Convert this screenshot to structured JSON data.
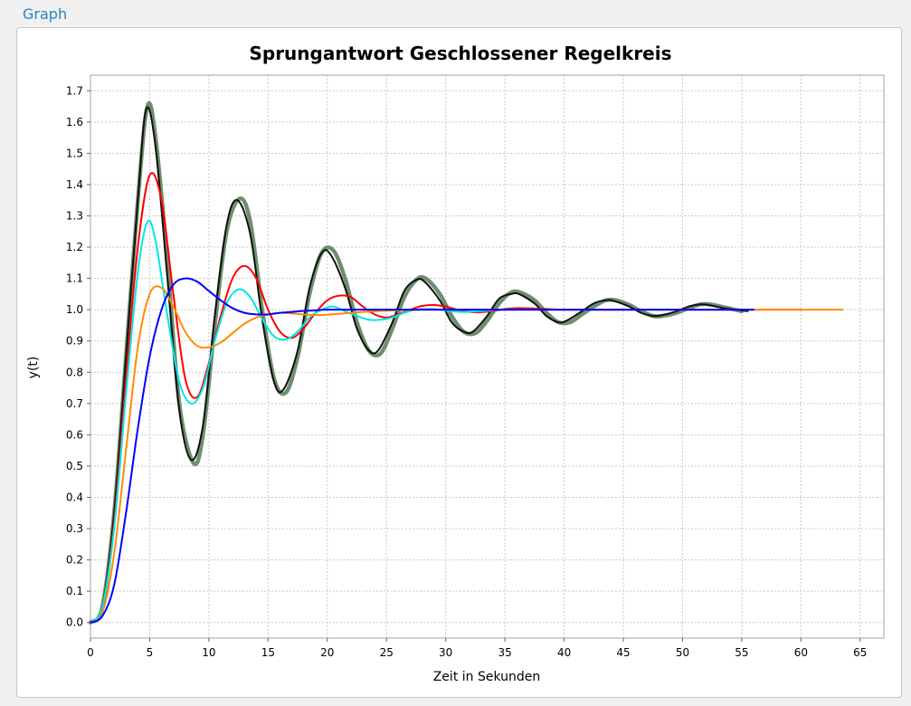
{
  "panel": {
    "title": "Graph"
  },
  "chart_data": {
    "type": "line",
    "title": "Sprungantwort Geschlossener Regelkreis",
    "xlabel": "Zeit in Sekunden",
    "ylabel": "y(t)",
    "xlim": [
      0,
      67
    ],
    "ylim": [
      -0.05,
      1.75
    ],
    "xticks": [
      0,
      5,
      10,
      15,
      20,
      25,
      30,
      35,
      40,
      45,
      50,
      55,
      60,
      65
    ],
    "yticks": [
      0.0,
      0.1,
      0.2,
      0.3,
      0.4,
      0.5,
      0.6,
      0.7,
      0.8,
      0.9,
      1.0,
      1.1,
      1.2,
      1.3,
      1.4,
      1.5,
      1.6,
      1.7
    ],
    "grid": true,
    "series": [
      {
        "color": "#6e8f6e",
        "width": 4.5,
        "x": [
          0,
          1,
          2,
          3,
          4,
          4.8,
          5.5,
          6.5,
          7.5,
          8.7,
          9.5,
          10.5,
          11.5,
          12.6,
          13.5,
          14.5,
          15.5,
          16.5,
          17.5,
          18.5,
          19.5,
          20.5,
          21.5,
          22.5,
          23.5,
          24.5,
          25.5,
          26.5,
          27.5,
          28.3,
          29.5,
          30.5,
          31.5,
          32.5,
          33.5,
          34.5,
          35.5,
          36.3,
          37.5,
          38.5,
          39.5,
          40.5,
          41.5,
          42.5,
          43.5,
          44.4,
          45.5,
          46.5,
          47.5,
          48.3,
          49.5,
          50.5,
          51.5,
          52.3,
          53.5,
          55
        ],
        "y": [
          0,
          0.05,
          0.35,
          0.85,
          1.35,
          1.65,
          1.55,
          1.15,
          0.7,
          0.51,
          0.6,
          0.95,
          1.25,
          1.355,
          1.28,
          1.0,
          0.78,
          0.735,
          0.85,
          1.05,
          1.18,
          1.19,
          1.1,
          0.96,
          0.87,
          0.86,
          0.94,
          1.04,
          1.095,
          1.1,
          1.05,
          0.98,
          0.93,
          0.925,
          0.965,
          1.02,
          1.055,
          1.055,
          1.03,
          0.99,
          0.96,
          0.96,
          0.985,
          1.01,
          1.03,
          1.03,
          1.015,
          0.995,
          0.98,
          0.98,
          0.99,
          1.005,
          1.017,
          1.017,
          1.008,
          0.995
        ]
      },
      {
        "color": "#111111",
        "width": 2,
        "x": [
          0,
          1,
          2,
          3,
          4,
          4.7,
          5.5,
          6.5,
          7.5,
          8.5,
          9.5,
          10.5,
          11.5,
          12.4,
          13.5,
          14.5,
          15.5,
          16.3,
          17.5,
          18.5,
          19.5,
          20.3,
          21.5,
          22.5,
          23.5,
          24.3,
          25.5,
          26.5,
          27.5,
          28.2,
          29.5,
          30.5,
          31.5,
          32.3,
          33.5,
          34.5,
          35.5,
          36.2,
          37.5,
          38.5,
          39.5,
          40.2,
          41.5,
          42.5,
          43.5,
          44.2,
          45.5,
          46.5,
          47.5,
          48.2,
          49.5,
          50.5,
          51.5,
          52.2,
          53.5,
          55.5
        ],
        "y": [
          0,
          0.05,
          0.35,
          0.85,
          1.35,
          1.64,
          1.52,
          1.1,
          0.68,
          0.52,
          0.63,
          0.98,
          1.27,
          1.35,
          1.24,
          0.97,
          0.77,
          0.745,
          0.87,
          1.07,
          1.18,
          1.175,
          1.07,
          0.94,
          0.87,
          0.87,
          0.96,
          1.06,
          1.095,
          1.09,
          1.03,
          0.96,
          0.93,
          0.93,
          0.98,
          1.035,
          1.05,
          1.05,
          1.02,
          0.98,
          0.96,
          0.965,
          0.995,
          1.02,
          1.03,
          1.028,
          1.01,
          0.99,
          0.98,
          0.982,
          0.995,
          1.01,
          1.017,
          1.015,
          1.005,
          0.995
        ]
      },
      {
        "color": "#ff0000",
        "width": 2,
        "x": [
          0,
          1,
          2,
          3,
          4,
          5,
          6,
          7,
          8,
          9,
          10,
          11,
          12,
          13,
          14,
          15,
          16,
          17,
          18,
          19,
          20,
          21,
          22,
          23,
          24,
          25,
          26,
          27,
          28,
          29,
          30,
          31,
          32,
          33,
          34,
          35,
          36,
          38,
          40,
          45,
          50,
          55,
          60
        ],
        "y": [
          0,
          0.05,
          0.32,
          0.78,
          1.2,
          1.43,
          1.35,
          1.05,
          0.78,
          0.72,
          0.83,
          0.98,
          1.1,
          1.14,
          1.1,
          1.0,
          0.93,
          0.91,
          0.94,
          0.99,
          1.03,
          1.045,
          1.04,
          1.01,
          0.985,
          0.975,
          0.985,
          1.0,
          1.012,
          1.015,
          1.01,
          1.0,
          0.993,
          0.992,
          0.996,
          1.002,
          1.005,
          1.003,
          1.0,
          1.0,
          1.0,
          1.0,
          1.0
        ]
      },
      {
        "color": "#00e6e6",
        "width": 2,
        "x": [
          0,
          1,
          2,
          3,
          4,
          4.8,
          5.5,
          6.5,
          7.5,
          8.5,
          9.5,
          10.5,
          11.5,
          12.5,
          13.5,
          14.5,
          15.5,
          16.5,
          17.5,
          18.5,
          19.5,
          20.5,
          21.5,
          22.5,
          23.5,
          24.5,
          25.5,
          26.5,
          27.5,
          28.5,
          29.5,
          30.5,
          31.5,
          32.5,
          33.5,
          34.5,
          35,
          36,
          40,
          45,
          50,
          55,
          56.5
        ],
        "y": [
          0,
          0.05,
          0.3,
          0.73,
          1.12,
          1.28,
          1.22,
          0.98,
          0.77,
          0.7,
          0.75,
          0.9,
          1.02,
          1.065,
          1.04,
          0.97,
          0.915,
          0.905,
          0.93,
          0.975,
          1.0,
          1.01,
          0.995,
          0.98,
          0.968,
          0.968,
          0.975,
          0.99,
          1.0,
          1.002,
          1.0,
          0.995,
          0.993,
          0.994,
          0.997,
          1.0,
          1.0,
          1.0,
          1.0,
          1.0,
          1.0,
          1.0,
          1.0
        ]
      },
      {
        "color": "#ff8c00",
        "width": 2,
        "x": [
          0,
          1,
          2,
          3,
          4,
          5,
          6,
          7,
          8,
          9,
          10,
          11,
          12,
          13,
          14,
          15,
          16,
          17,
          18,
          19,
          20,
          22,
          24,
          26,
          28,
          30,
          35,
          40,
          45,
          50,
          55,
          60,
          63.5
        ],
        "y": [
          0,
          0.03,
          0.22,
          0.55,
          0.88,
          1.05,
          1.07,
          1.01,
          0.93,
          0.885,
          0.88,
          0.895,
          0.925,
          0.955,
          0.975,
          0.985,
          0.99,
          0.988,
          0.985,
          0.983,
          0.984,
          0.99,
          0.995,
          0.998,
          1.0,
          1.0,
          1.0,
          1.0,
          1.0,
          1.0,
          1.0,
          1.0,
          1.0
        ]
      },
      {
        "color": "#0000ff",
        "width": 2,
        "x": [
          0,
          1,
          2,
          3,
          4,
          5,
          6,
          7,
          8,
          9,
          10,
          11,
          12,
          13,
          14,
          15,
          16,
          17,
          18,
          19,
          20,
          22,
          24,
          26,
          28,
          30,
          35,
          40,
          45,
          50,
          55,
          56
        ],
        "y": [
          0,
          0.02,
          0.12,
          0.35,
          0.62,
          0.85,
          1.0,
          1.08,
          1.1,
          1.09,
          1.06,
          1.03,
          1.005,
          0.99,
          0.985,
          0.985,
          0.99,
          0.993,
          0.996,
          0.998,
          1.0,
          1.0,
          1.0,
          1.0,
          1.0,
          1.0,
          1.0,
          1.0,
          1.0,
          1.0,
          1.0,
          1.0
        ]
      }
    ]
  }
}
